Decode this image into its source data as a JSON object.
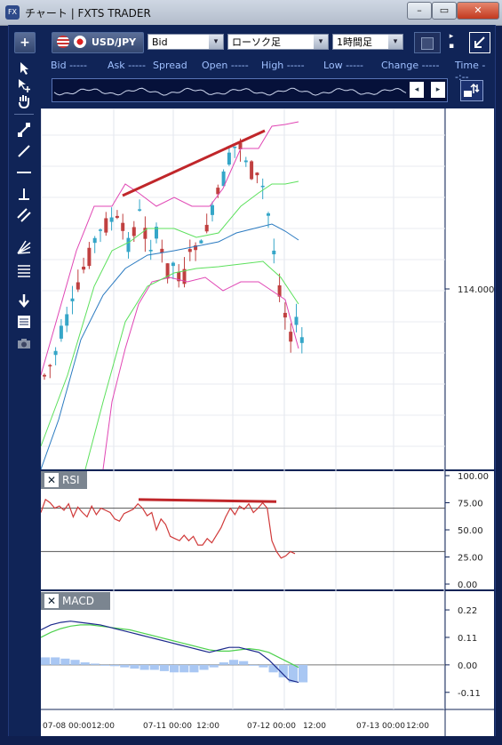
{
  "window": {
    "title": "チャート | FXTS TRADER",
    "app_icon": "FX",
    "minimize": "–",
    "restore": "▭",
    "close": "✕"
  },
  "toolbar": {
    "add_label": "+",
    "symbol": "USD/JPY",
    "price_type": "Bid",
    "chart_type": "ローソク足",
    "timeframe": "1時間足",
    "dropdown_glyph": "▾"
  },
  "price_bar": [
    {
      "label": "Bid",
      "value": "-----"
    },
    {
      "label": "Ask",
      "value": "-----"
    },
    {
      "label": "Spread",
      "value": ""
    },
    {
      "label": "Open",
      "value": "-----"
    },
    {
      "label": "High",
      "value": "-----"
    },
    {
      "label": "Low",
      "value": "-----"
    },
    {
      "label": "Change",
      "value": "-----"
    },
    {
      "label": "Time",
      "value": "--:--"
    }
  ],
  "panels": {
    "rsi_label": "RSI",
    "macd_label": "MACD",
    "close_glyph": "✕"
  },
  "chart_data": {
    "type": "candlestick",
    "price_axis": {
      "ticks": [
        114.0
      ],
      "tick_labels": [
        "114.000"
      ]
    },
    "rsi": {
      "ticks": [
        100,
        75,
        50,
        25,
        0
      ],
      "tick_labels": [
        "100.00",
        "75.00",
        "50.00",
        "25.00",
        "0.00"
      ],
      "levels": [
        70,
        30
      ],
      "values": [
        66,
        78,
        75,
        70,
        72,
        68,
        74,
        62,
        71,
        66,
        62,
        72,
        64,
        70,
        68,
        66,
        60,
        58,
        65,
        67,
        69,
        74,
        70,
        63,
        66,
        50,
        60,
        55,
        44,
        42,
        40,
        45,
        40,
        44,
        36,
        36,
        42,
        38,
        45,
        52,
        62,
        70,
        64,
        72,
        69,
        74,
        66,
        70,
        75,
        70,
        40,
        30,
        24,
        26,
        30,
        28
      ]
    },
    "macd": {
      "ticks": [
        0.22,
        0.11,
        0.0,
        -0.11
      ],
      "tick_labels": [
        "0.22",
        "0.11",
        "0.00",
        "-0.11"
      ],
      "macd_line": [
        0.14,
        0.16,
        0.17,
        0.175,
        0.17,
        0.165,
        0.16,
        0.15,
        0.14,
        0.13,
        0.12,
        0.11,
        0.1,
        0.09,
        0.08,
        0.07,
        0.06,
        0.05,
        0.06,
        0.07,
        0.07,
        0.06,
        0.05,
        0.02,
        -0.02,
        -0.06,
        -0.07
      ],
      "signal_line": [
        0.11,
        0.13,
        0.145,
        0.155,
        0.16,
        0.16,
        0.155,
        0.15,
        0.145,
        0.14,
        0.13,
        0.12,
        0.11,
        0.1,
        0.09,
        0.08,
        0.07,
        0.06,
        0.055,
        0.055,
        0.06,
        0.065,
        0.06,
        0.05,
        0.03,
        0.01,
        -0.01
      ],
      "histogram": [
        0.03,
        0.03,
        0.025,
        0.02,
        0.01,
        0.005,
        0.0,
        -0.005,
        -0.01,
        -0.015,
        -0.02,
        -0.02,
        -0.025,
        -0.03,
        -0.03,
        -0.03,
        -0.02,
        -0.01,
        0.01,
        0.02,
        0.015,
        0.0,
        -0.01,
        -0.03,
        -0.05,
        -0.07,
        -0.07
      ]
    },
    "x_tick_labels": [
      "07-08 00:00",
      "12:00",
      "07-11 00:00",
      "12:00",
      "07-12 00:00",
      "12:00",
      "07-13 00:00",
      "12:00"
    ],
    "colors": {
      "up": "#35a6c8",
      "down": "#c04040",
      "rsi": "#d03a3a",
      "macd": "#1c2a8c",
      "signal": "#4ed14e",
      "hist": "#a9c7f3",
      "band_outer": "#e046b4",
      "band_inner": "#5ce05c",
      "ma": "#2a7ac0",
      "trend": "#c0262a"
    }
  }
}
